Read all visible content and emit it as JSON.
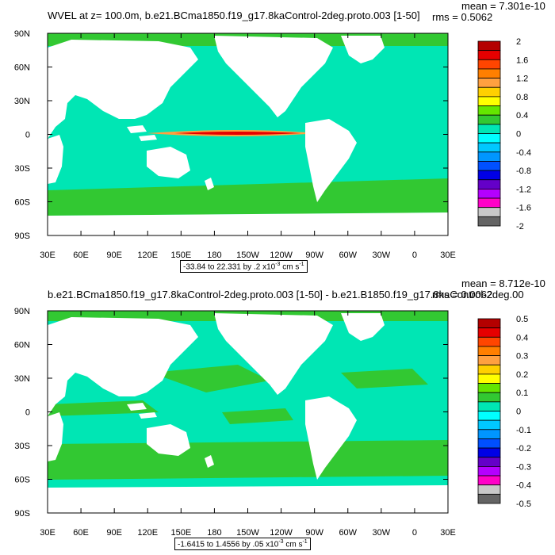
{
  "chart_data": [
    {
      "type": "heatmap",
      "title": "WVEL at z= 100.0m, b.e21.BCma1850.f19_g17.8kaControl-2deg.proto.003 [1-50]",
      "mean_text": "mean = 7.301e-10",
      "rms_text": "rms = 0.5062",
      "xticks": [
        "30E",
        "60E",
        "90E",
        "120E",
        "150E",
        "180",
        "150W",
        "120W",
        "90W",
        "60W",
        "30W",
        "0",
        "30E"
      ],
      "yticks": [
        "90N",
        "60N",
        "30N",
        "0",
        "30S",
        "60S",
        "90S"
      ],
      "ylim": [
        -90,
        90
      ],
      "colorbar_labels": [
        "2",
        "1.6",
        "1.2",
        "0.8",
        "0.4",
        "0",
        "-0.4",
        "-0.8",
        "-1.2",
        "-1.6",
        "-2"
      ],
      "colorbar_colors": [
        "#b40000",
        "#e60000",
        "#ff4500",
        "#ff7f00",
        "#ffa040",
        "#ffd000",
        "#ffff00",
        "#64e600",
        "#32c832",
        "#00e6b4",
        "#00ffff",
        "#00c8ff",
        "#0096ff",
        "#0050ff",
        "#0000e6",
        "#6400c8",
        "#b400ff",
        "#ff00c8",
        "#c8c8c8",
        "#646464"
      ],
      "range_text_pre": "-33.84 to 22.331 by .2 x10",
      "range_exp": "-3",
      "range_units": " cm s",
      "range_units_exp": "-1"
    },
    {
      "type": "heatmap",
      "title": "b.e21.BCma1850.f19_g17.8kaControl-2deg.proto.003 [1-50] - b.e21.B1850.f19_g17.8kaControl-2deg.00",
      "mean_text": "mean = 8.712e-10",
      "rms_text": "rms = 0.0062",
      "xticks": [
        "30E",
        "60E",
        "90E",
        "120E",
        "150E",
        "180",
        "150W",
        "120W",
        "90W",
        "60W",
        "30W",
        "0",
        "30E"
      ],
      "yticks": [
        "90N",
        "60N",
        "30N",
        "0",
        "30S",
        "60S",
        "90S"
      ],
      "ylim": [
        -90,
        90
      ],
      "colorbar_labels": [
        "0.5",
        "0.4",
        "0.3",
        "0.2",
        "0.1",
        "0",
        "-0.1",
        "-0.2",
        "-0.3",
        "-0.4",
        "-0.5"
      ],
      "colorbar_colors": [
        "#b40000",
        "#e60000",
        "#ff4500",
        "#ff7f00",
        "#ffa040",
        "#ffd000",
        "#ffff00",
        "#64e600",
        "#32c832",
        "#00e6b4",
        "#00ffff",
        "#00c8ff",
        "#0096ff",
        "#0050ff",
        "#0000e6",
        "#6400c8",
        "#b400ff",
        "#ff00c8",
        "#c8c8c8",
        "#646464"
      ],
      "range_text_pre": "-1.6415 to 1.4556 by .05 x10",
      "range_exp": "-3",
      "range_units": " cm s",
      "range_units_exp": "-1"
    }
  ],
  "colors": {
    "ocean_main": "#00e6b4",
    "ocean_alt": "#32c832",
    "land": "#ffffff"
  }
}
